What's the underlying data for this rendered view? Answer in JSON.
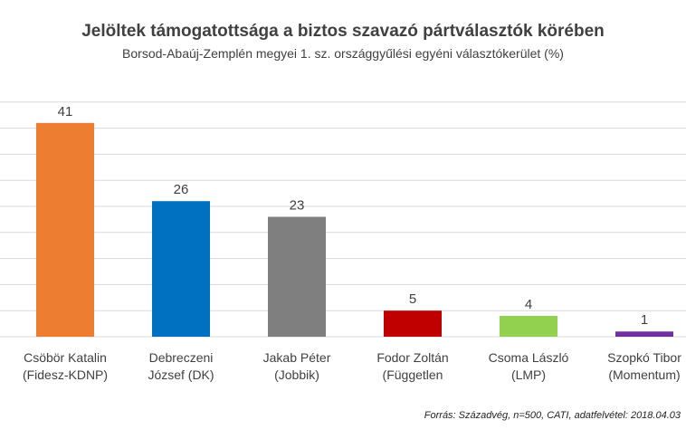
{
  "chart_data": {
    "type": "bar",
    "title": "Jelöltek támogatottsága a biztos szavazó pártválasztók körében",
    "subtitle": "Borsod-Abaúj-Zemplén megyei 1. sz. országgyűlési egyéni választókerület (%)",
    "categories": [
      [
        "Csöbör Katalin",
        "(Fidesz-KDNP)"
      ],
      [
        "Debreczeni",
        "József (DK)"
      ],
      [
        "Jakab Péter",
        "(Jobbik)"
      ],
      [
        "Fodor Zoltán",
        "(Független"
      ],
      [
        "Csoma László",
        "(LMP)"
      ],
      [
        "Szopkó Tibor",
        "(Momentum)"
      ]
    ],
    "values": [
      41,
      26,
      23,
      5,
      4,
      1
    ],
    "colors": [
      "#ED7D31",
      "#0070C0",
      "#7F7F7F",
      "#C00000",
      "#92D050",
      "#7030A0"
    ],
    "ylim": [
      0,
      45
    ],
    "grid": true,
    "legend": "none"
  },
  "source": "Forrás: Századvég, n=500, CATI, adatfelvétel: 2018.04.03"
}
